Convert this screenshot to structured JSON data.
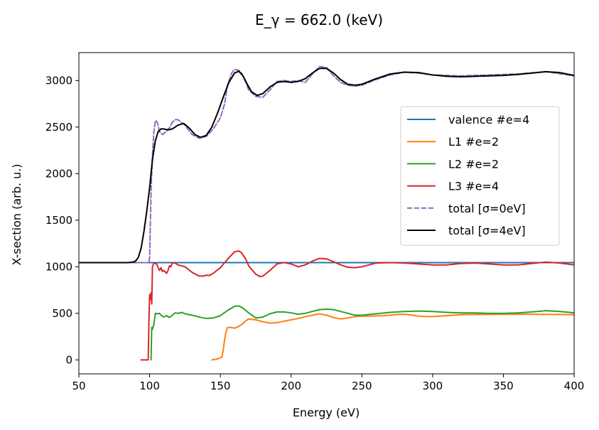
{
  "chart_data": {
    "type": "line",
    "title": "E_γ = 662.0 (keV)",
    "xlabel": "Energy (eV)",
    "ylabel": "X-section (arb. u.)",
    "xlim": [
      50,
      400
    ],
    "ylim": [
      -150,
      3300
    ],
    "xticks": [
      50,
      100,
      150,
      200,
      250,
      300,
      350,
      400
    ],
    "yticks": [
      0,
      500,
      1000,
      1500,
      2000,
      2500,
      3000
    ],
    "grid": false,
    "legend_position": "center-right",
    "series": [
      {
        "name": "valence #e=4",
        "color": "#1f77b4",
        "style": "solid",
        "x": [
          50,
          400
        ],
        "y": [
          1045,
          1045
        ]
      },
      {
        "name": "L1 #e=2",
        "color": "#ff7f0e",
        "style": "solid",
        "x": [
          144,
          148,
          151,
          152,
          153,
          154,
          155,
          157,
          160,
          163,
          166,
          168,
          170,
          175,
          180,
          185,
          190,
          195,
          200,
          205,
          210,
          215,
          220,
          225,
          230,
          235,
          240,
          245,
          250,
          255,
          260,
          265,
          270,
          275,
          280,
          285,
          290,
          295,
          300,
          310,
          320,
          330,
          340,
          350,
          360,
          370,
          380,
          390,
          400
        ],
        "y": [
          0,
          10,
          30,
          100,
          220,
          300,
          345,
          350,
          340,
          360,
          390,
          420,
          440,
          430,
          410,
          395,
          400,
          415,
          430,
          445,
          465,
          480,
          495,
          480,
          455,
          440,
          450,
          465,
          470,
          470,
          472,
          475,
          480,
          488,
          490,
          482,
          470,
          465,
          465,
          475,
          485,
          488,
          488,
          490,
          490,
          490,
          488,
          487,
          485
        ]
      },
      {
        "name": "L2 #e=2",
        "color": "#2ca02c",
        "style": "solid",
        "x": [
          101,
          101.5,
          102,
          103,
          104,
          105,
          107,
          108,
          110,
          112,
          114,
          116,
          118,
          120,
          123,
          125,
          130,
          135,
          140,
          145,
          150,
          155,
          160,
          163,
          166,
          170,
          175,
          180,
          185,
          190,
          195,
          200,
          205,
          210,
          215,
          220,
          225,
          230,
          235,
          240,
          245,
          250,
          260,
          270,
          280,
          290,
          300,
          310,
          320,
          330,
          340,
          350,
          360,
          370,
          380,
          390,
          400
        ],
        "y": [
          0,
          350,
          330,
          380,
          500,
          495,
          500,
          480,
          460,
          475,
          455,
          480,
          505,
          500,
          510,
          495,
          480,
          460,
          445,
          450,
          475,
          530,
          575,
          580,
          555,
          505,
          450,
          460,
          495,
          515,
          515,
          505,
          490,
          500,
          520,
          540,
          545,
          540,
          520,
          500,
          480,
          480,
          495,
          510,
          520,
          525,
          520,
          510,
          505,
          505,
          500,
          500,
          505,
          515,
          528,
          520,
          505
        ]
      },
      {
        "name": "L3 #e=4",
        "color": "#d62728",
        "style": "solid",
        "x": [
          94,
          99,
          99.5,
          100,
          100.5,
          101,
          101.5,
          102,
          103,
          105,
          106,
          107,
          108,
          109,
          110,
          112,
          113,
          114,
          115,
          116,
          118,
          120,
          125,
          130,
          135,
          138,
          140,
          142,
          145,
          150,
          155,
          160,
          163,
          165,
          168,
          170,
          175,
          178,
          180,
          185,
          190,
          195,
          200,
          205,
          210,
          215,
          220,
          225,
          230,
          235,
          240,
          245,
          250,
          260,
          270,
          280,
          290,
          300,
          310,
          320,
          330,
          340,
          350,
          360,
          370,
          380,
          390,
          400
        ],
        "y": [
          0,
          0,
          400,
          700,
          650,
          720,
          600,
          1000,
          1040,
          1030,
          990,
          960,
          990,
          950,
          960,
          930,
          960,
          1010,
          1000,
          1040,
          1040,
          1020,
          1000,
          940,
          900,
          900,
          910,
          905,
          930,
          990,
          1080,
          1160,
          1170,
          1150,
          1080,
          1010,
          920,
          895,
          900,
          960,
          1030,
          1045,
          1030,
          1000,
          1020,
          1060,
          1090,
          1085,
          1055,
          1020,
          995,
          990,
          1000,
          1040,
          1045,
          1040,
          1030,
          1020,
          1020,
          1035,
          1040,
          1030,
          1020,
          1020,
          1035,
          1050,
          1040,
          1020
        ]
      },
      {
        "name": "total [σ=0eV]",
        "color": "#9467bd",
        "style": "dashed",
        "x": [
          50,
          99.5,
          100,
          101,
          102,
          103,
          104,
          105,
          106,
          107,
          108,
          109,
          110,
          112,
          114,
          116,
          118,
          120,
          125,
          130,
          135,
          140,
          145,
          150,
          153,
          155,
          158,
          160,
          163,
          165,
          168,
          170,
          175,
          180,
          185,
          190,
          195,
          200,
          205,
          210,
          215,
          220,
          225,
          230,
          235,
          240,
          245,
          250,
          260,
          270,
          280,
          290,
          300,
          320,
          340,
          360,
          380,
          400
        ],
        "y": [
          1045,
          1045,
          1100,
          1800,
          2200,
          2450,
          2570,
          2560,
          2520,
          2450,
          2440,
          2420,
          2430,
          2460,
          2490,
          2550,
          2580,
          2580,
          2520,
          2420,
          2380,
          2400,
          2480,
          2600,
          2750,
          2950,
          3080,
          3120,
          3110,
          3080,
          2980,
          2900,
          2830,
          2820,
          2900,
          2990,
          3000,
          2990,
          3000,
          2980,
          3070,
          3150,
          3140,
          3050,
          2980,
          2950,
          2940,
          2950,
          3010,
          3060,
          3090,
          3080,
          3060,
          3050,
          3060,
          3070,
          3095,
          3050
        ]
      },
      {
        "name": "total [σ=4eV]",
        "color": "#000000",
        "style": "solid",
        "x": [
          50,
          85,
          88,
          90,
          92,
          94,
          96,
          98,
          100,
          102,
          104,
          106,
          108,
          110,
          113,
          116,
          120,
          124,
          128,
          132,
          136,
          140,
          144,
          148,
          152,
          156,
          160,
          163,
          166,
          169,
          172,
          176,
          180,
          185,
          190,
          195,
          200,
          205,
          210,
          215,
          220,
          225,
          230,
          235,
          240,
          245,
          250,
          260,
          270,
          280,
          290,
          300,
          310,
          320,
          330,
          340,
          350,
          360,
          370,
          380,
          390,
          400
        ],
        "y": [
          1045,
          1045,
          1050,
          1060,
          1100,
          1200,
          1380,
          1600,
          1850,
          2150,
          2350,
          2450,
          2480,
          2480,
          2470,
          2480,
          2520,
          2540,
          2490,
          2420,
          2390,
          2410,
          2500,
          2650,
          2820,
          2980,
          3080,
          3100,
          3050,
          2960,
          2880,
          2840,
          2860,
          2930,
          2980,
          2990,
          2980,
          2990,
          3020,
          3080,
          3130,
          3130,
          3080,
          3010,
          2960,
          2950,
          2960,
          3020,
          3070,
          3090,
          3085,
          3060,
          3045,
          3040,
          3045,
          3050,
          3055,
          3065,
          3080,
          3095,
          3085,
          3055
        ]
      }
    ]
  }
}
